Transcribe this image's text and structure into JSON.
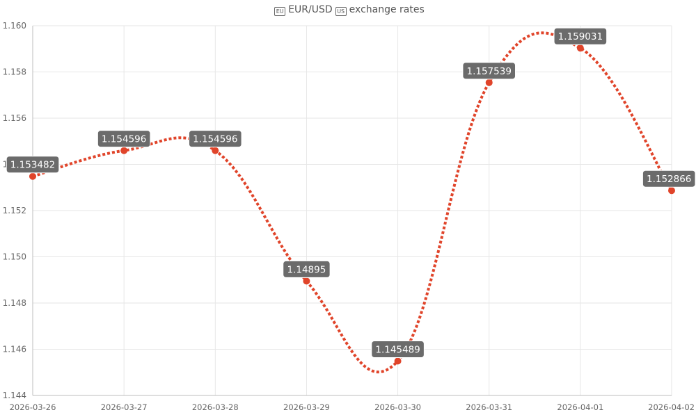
{
  "chart_data": {
    "type": "line",
    "title": "EUR/USD exchange rates",
    "title_parts": {
      "base": "EUR",
      "quote": "USD",
      "suffix": "exchange rates",
      "base_flag": "EU",
      "quote_flag": "US"
    },
    "categories": [
      "2026-03-26",
      "2026-03-27",
      "2026-03-28",
      "2026-03-29",
      "2026-03-30",
      "2026-03-31",
      "2026-04-01",
      "2026-04-02"
    ],
    "series": [
      {
        "values": [
          1.153482,
          1.154596,
          1.154596,
          1.14895,
          1.145489,
          1.157539,
          1.159031,
          1.152866
        ],
        "labels": [
          "1.153482",
          "1.154596",
          "1.154596",
          "1.14895",
          "1.145489",
          "1.157539",
          "1.159031",
          "1.152866"
        ]
      }
    ],
    "yticks": [
      "1.144",
      "1.146",
      "1.148",
      "1.150",
      "1.152",
      "1.154",
      "1.156",
      "1.158",
      "1.160"
    ],
    "ylim": [
      1.144,
      1.16
    ],
    "grid": true,
    "legend": "none",
    "colors": {
      "line": "#e0442a",
      "point": "#e0442a",
      "label_bg": "#6b6b6b",
      "label_text": "#ffffff",
      "grid": "#e6e6e6",
      "axis_text": "#666666"
    }
  }
}
